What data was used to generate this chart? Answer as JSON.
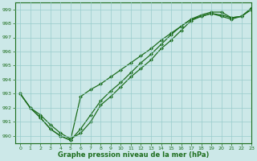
{
  "xlabel": "Graphe pression niveau de la mer (hPa)",
  "ylabel": "",
  "bg_color": "#cce8e8",
  "grid_color": "#99cccc",
  "line_color": "#1e6e1e",
  "xlim": [
    -0.5,
    23
  ],
  "ylim": [
    989.5,
    999.5
  ],
  "yticks": [
    990,
    991,
    992,
    993,
    994,
    995,
    996,
    997,
    998,
    999
  ],
  "xticks": [
    0,
    1,
    2,
    3,
    4,
    5,
    6,
    7,
    8,
    9,
    10,
    11,
    12,
    13,
    14,
    15,
    16,
    17,
    18,
    19,
    20,
    21,
    22,
    23
  ],
  "line1": [
    993.0,
    992.0,
    991.5,
    990.8,
    990.2,
    989.8,
    990.2,
    991.0,
    992.2,
    992.8,
    993.5,
    994.2,
    994.8,
    995.4,
    996.2,
    996.8,
    997.5,
    998.2,
    998.5,
    998.7,
    998.5,
    998.3,
    998.5,
    999.0
  ],
  "line2": [
    993.0,
    992.0,
    991.3,
    990.5,
    990.0,
    989.7,
    990.5,
    991.5,
    992.5,
    993.2,
    993.8,
    994.5,
    995.2,
    995.8,
    996.5,
    997.2,
    997.8,
    998.3,
    998.6,
    998.8,
    998.8,
    998.4,
    998.5,
    999.0
  ],
  "line3": [
    993.0,
    992.0,
    991.3,
    990.5,
    990.0,
    989.7,
    992.8,
    993.3,
    993.7,
    994.2,
    994.7,
    995.2,
    995.7,
    996.2,
    996.8,
    997.3,
    997.8,
    998.3,
    998.5,
    998.7,
    998.6,
    998.4,
    998.5,
    999.1
  ],
  "marker": "D",
  "markersize": 2.0,
  "linewidth": 0.9
}
